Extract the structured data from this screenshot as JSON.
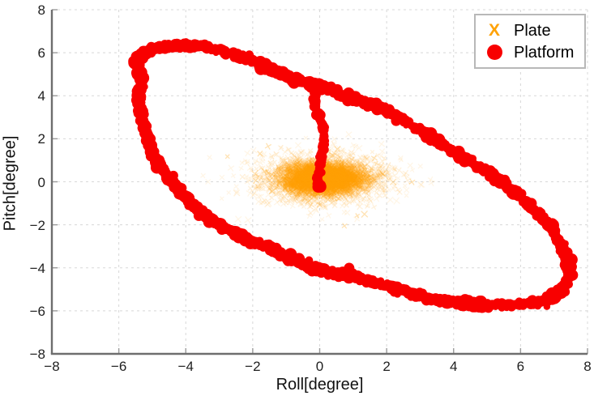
{
  "chart_data": {
    "type": "scatter",
    "title": "",
    "xlabel": "Roll[degree]",
    "ylabel": "Pitch[degree]",
    "xlim": [
      -8,
      8
    ],
    "ylim": [
      -8,
      8
    ],
    "xticks": [
      -8,
      -6,
      -4,
      -2,
      0,
      2,
      4,
      6,
      8
    ],
    "yticks": [
      -8,
      -6,
      -4,
      -2,
      0,
      2,
      4,
      6,
      8
    ],
    "xtick_labels": [
      "−8",
      "−6",
      "−4",
      "−2",
      "0",
      "2",
      "4",
      "6",
      "8"
    ],
    "ytick_labels": [
      "−8",
      "−6",
      "−4",
      "−2",
      "0",
      "2",
      "4",
      "6",
      "8"
    ],
    "grid": {
      "visible": true,
      "style": "dashed",
      "color": "#d8d8d8"
    },
    "axis_color": "#6e6e6e",
    "tick_color": "#9a9a9a",
    "tick_label_color": "#1f1f1f",
    "legend": {
      "position": "top-right",
      "border_color": "#b8b8b8",
      "background": "#ffffff"
    },
    "series": [
      {
        "name": "Plate",
        "marker": "x",
        "legend_glyph": "X",
        "color": "#FFA205",
        "description": "Dense gaussian cloud of x markers centered near the origin",
        "cluster": {
          "center": [
            0.1,
            0.15
          ],
          "std": [
            0.78,
            0.45
          ],
          "n": 3000,
          "x_range": [
            -2.0,
            2.1
          ],
          "y_range": [
            -1.45,
            1.6
          ]
        }
      },
      {
        "name": "Platform",
        "marker": "circle",
        "color": "#F80000",
        "description": "Thick noisy tilted elliptical loop with a vertical tail dropping from (0,4.3) to the origin",
        "band_width_deg": 0.35,
        "ring_points": [
          [
            -5.45,
            5.7
          ],
          [
            -5.05,
            6.1
          ],
          [
            -4.4,
            6.3
          ],
          [
            -3.7,
            6.3
          ],
          [
            -2.95,
            6.1
          ],
          [
            -2.25,
            5.75
          ],
          [
            -1.55,
            5.3
          ],
          [
            -0.85,
            4.85
          ],
          [
            -0.1,
            4.5
          ],
          [
            0.6,
            4.1
          ],
          [
            1.35,
            3.7
          ],
          [
            2.1,
            3.25
          ],
          [
            2.9,
            2.5
          ],
          [
            3.85,
            1.55
          ],
          [
            4.65,
            0.8
          ],
          [
            5.3,
            0.15
          ],
          [
            5.95,
            -0.65
          ],
          [
            6.5,
            -1.45
          ],
          [
            7.0,
            -2.3
          ],
          [
            7.3,
            -3.2
          ],
          [
            7.45,
            -4.1
          ],
          [
            7.3,
            -4.9
          ],
          [
            6.85,
            -5.4
          ],
          [
            6.2,
            -5.65
          ],
          [
            5.5,
            -5.72
          ],
          [
            4.7,
            -5.7
          ],
          [
            3.9,
            -5.6
          ],
          [
            3.1,
            -5.35
          ],
          [
            2.35,
            -5.0
          ],
          [
            1.6,
            -4.65
          ],
          [
            0.85,
            -4.35
          ],
          [
            0.1,
            -4.1
          ],
          [
            -0.6,
            -3.75
          ],
          [
            -1.35,
            -3.2
          ],
          [
            -2.3,
            -2.55
          ],
          [
            -3.2,
            -1.8
          ],
          [
            -3.8,
            -1.05
          ],
          [
            -4.25,
            -0.3
          ],
          [
            -4.65,
            0.45
          ],
          [
            -4.95,
            1.2
          ],
          [
            -5.15,
            2.0
          ],
          [
            -5.3,
            2.9
          ],
          [
            -5.38,
            3.8
          ],
          [
            -5.35,
            4.75
          ]
        ],
        "tail_points": [
          [
            -0.1,
            4.3
          ],
          [
            -0.15,
            3.6
          ],
          [
            0.0,
            2.95
          ],
          [
            0.1,
            2.5
          ],
          [
            0.12,
            1.8
          ],
          [
            0.05,
            1.25
          ],
          [
            0.02,
            0.7
          ],
          [
            -0.05,
            0.15
          ],
          [
            0.0,
            -0.2
          ]
        ]
      }
    ]
  }
}
